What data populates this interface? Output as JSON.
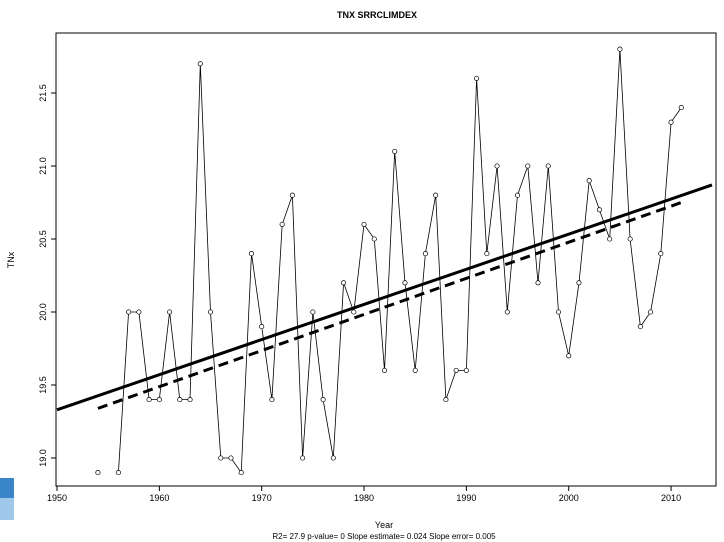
{
  "chart_data": {
    "type": "line",
    "title": "TNX   SRRCLIMDEX",
    "xlabel": "Year",
    "ylabel": "TNx",
    "footer": "R2= 27.9  p-value= 0  Slope estimate= 0.024  Slope error= 0.005",
    "xlim": [
      1950,
      2014
    ],
    "ylim": [
      18.8,
      21.9
    ],
    "xticks": [
      1950,
      1960,
      1970,
      1980,
      1990,
      2000,
      2010
    ],
    "yticks": [
      19.0,
      19.5,
      20.0,
      20.5,
      21.0,
      21.5
    ],
    "xtick_labels": [
      "1950",
      "1960",
      "1970",
      "1980",
      "1990",
      "2000",
      "2010"
    ],
    "ytick_labels": [
      "19.0",
      "19.5",
      "20.0",
      "20.5",
      "21.0",
      "21.5"
    ],
    "series": [
      {
        "x": [
          1954,
          1956,
          1957,
          1958,
          1959,
          1960,
          1961,
          1962,
          1963,
          1964,
          1965,
          1966,
          1967,
          1968,
          1969,
          1970,
          1971,
          1972,
          1973,
          1974,
          1975,
          1976,
          1977,
          1978,
          1979,
          1980,
          1981,
          1982,
          1983,
          1984,
          1985,
          1986,
          1987,
          1988,
          1989,
          1990,
          1991,
          1992,
          1993,
          1994,
          1995,
          1996,
          1997,
          1998,
          1999,
          2000,
          2001,
          2002,
          2003,
          2004,
          2005,
          2006,
          2007,
          2008,
          2009,
          2010,
          2011
        ],
        "values": [
          18.9,
          18.9,
          20.0,
          20.0,
          19.4,
          19.4,
          20.0,
          19.4,
          19.4,
          21.7,
          20.0,
          19.0,
          19.0,
          18.9,
          20.4,
          19.9,
          19.4,
          20.6,
          20.8,
          19.0,
          20.0,
          19.4,
          19.0,
          20.2,
          20.0,
          20.6,
          20.5,
          19.6,
          21.1,
          20.2,
          19.6,
          20.4,
          20.8,
          19.4,
          19.6,
          19.6,
          21.6,
          20.4,
          21.0,
          20.0,
          20.8,
          21.0,
          20.2,
          21.0,
          20.0,
          19.7,
          20.2,
          20.9,
          20.7,
          20.5,
          21.8,
          20.5,
          19.9,
          20.0,
          20.4,
          21.3,
          21.4
        ],
        "connect_from_index": 1,
        "color": "#000000"
      }
    ],
    "trend_lines": [
      {
        "style": "solid",
        "x": [
          1950,
          2014
        ],
        "y": [
          19.33,
          20.87
        ]
      },
      {
        "style": "dashed",
        "x": [
          1954,
          2011
        ],
        "y": [
          19.34,
          20.75
        ]
      }
    ],
    "grid": false
  }
}
